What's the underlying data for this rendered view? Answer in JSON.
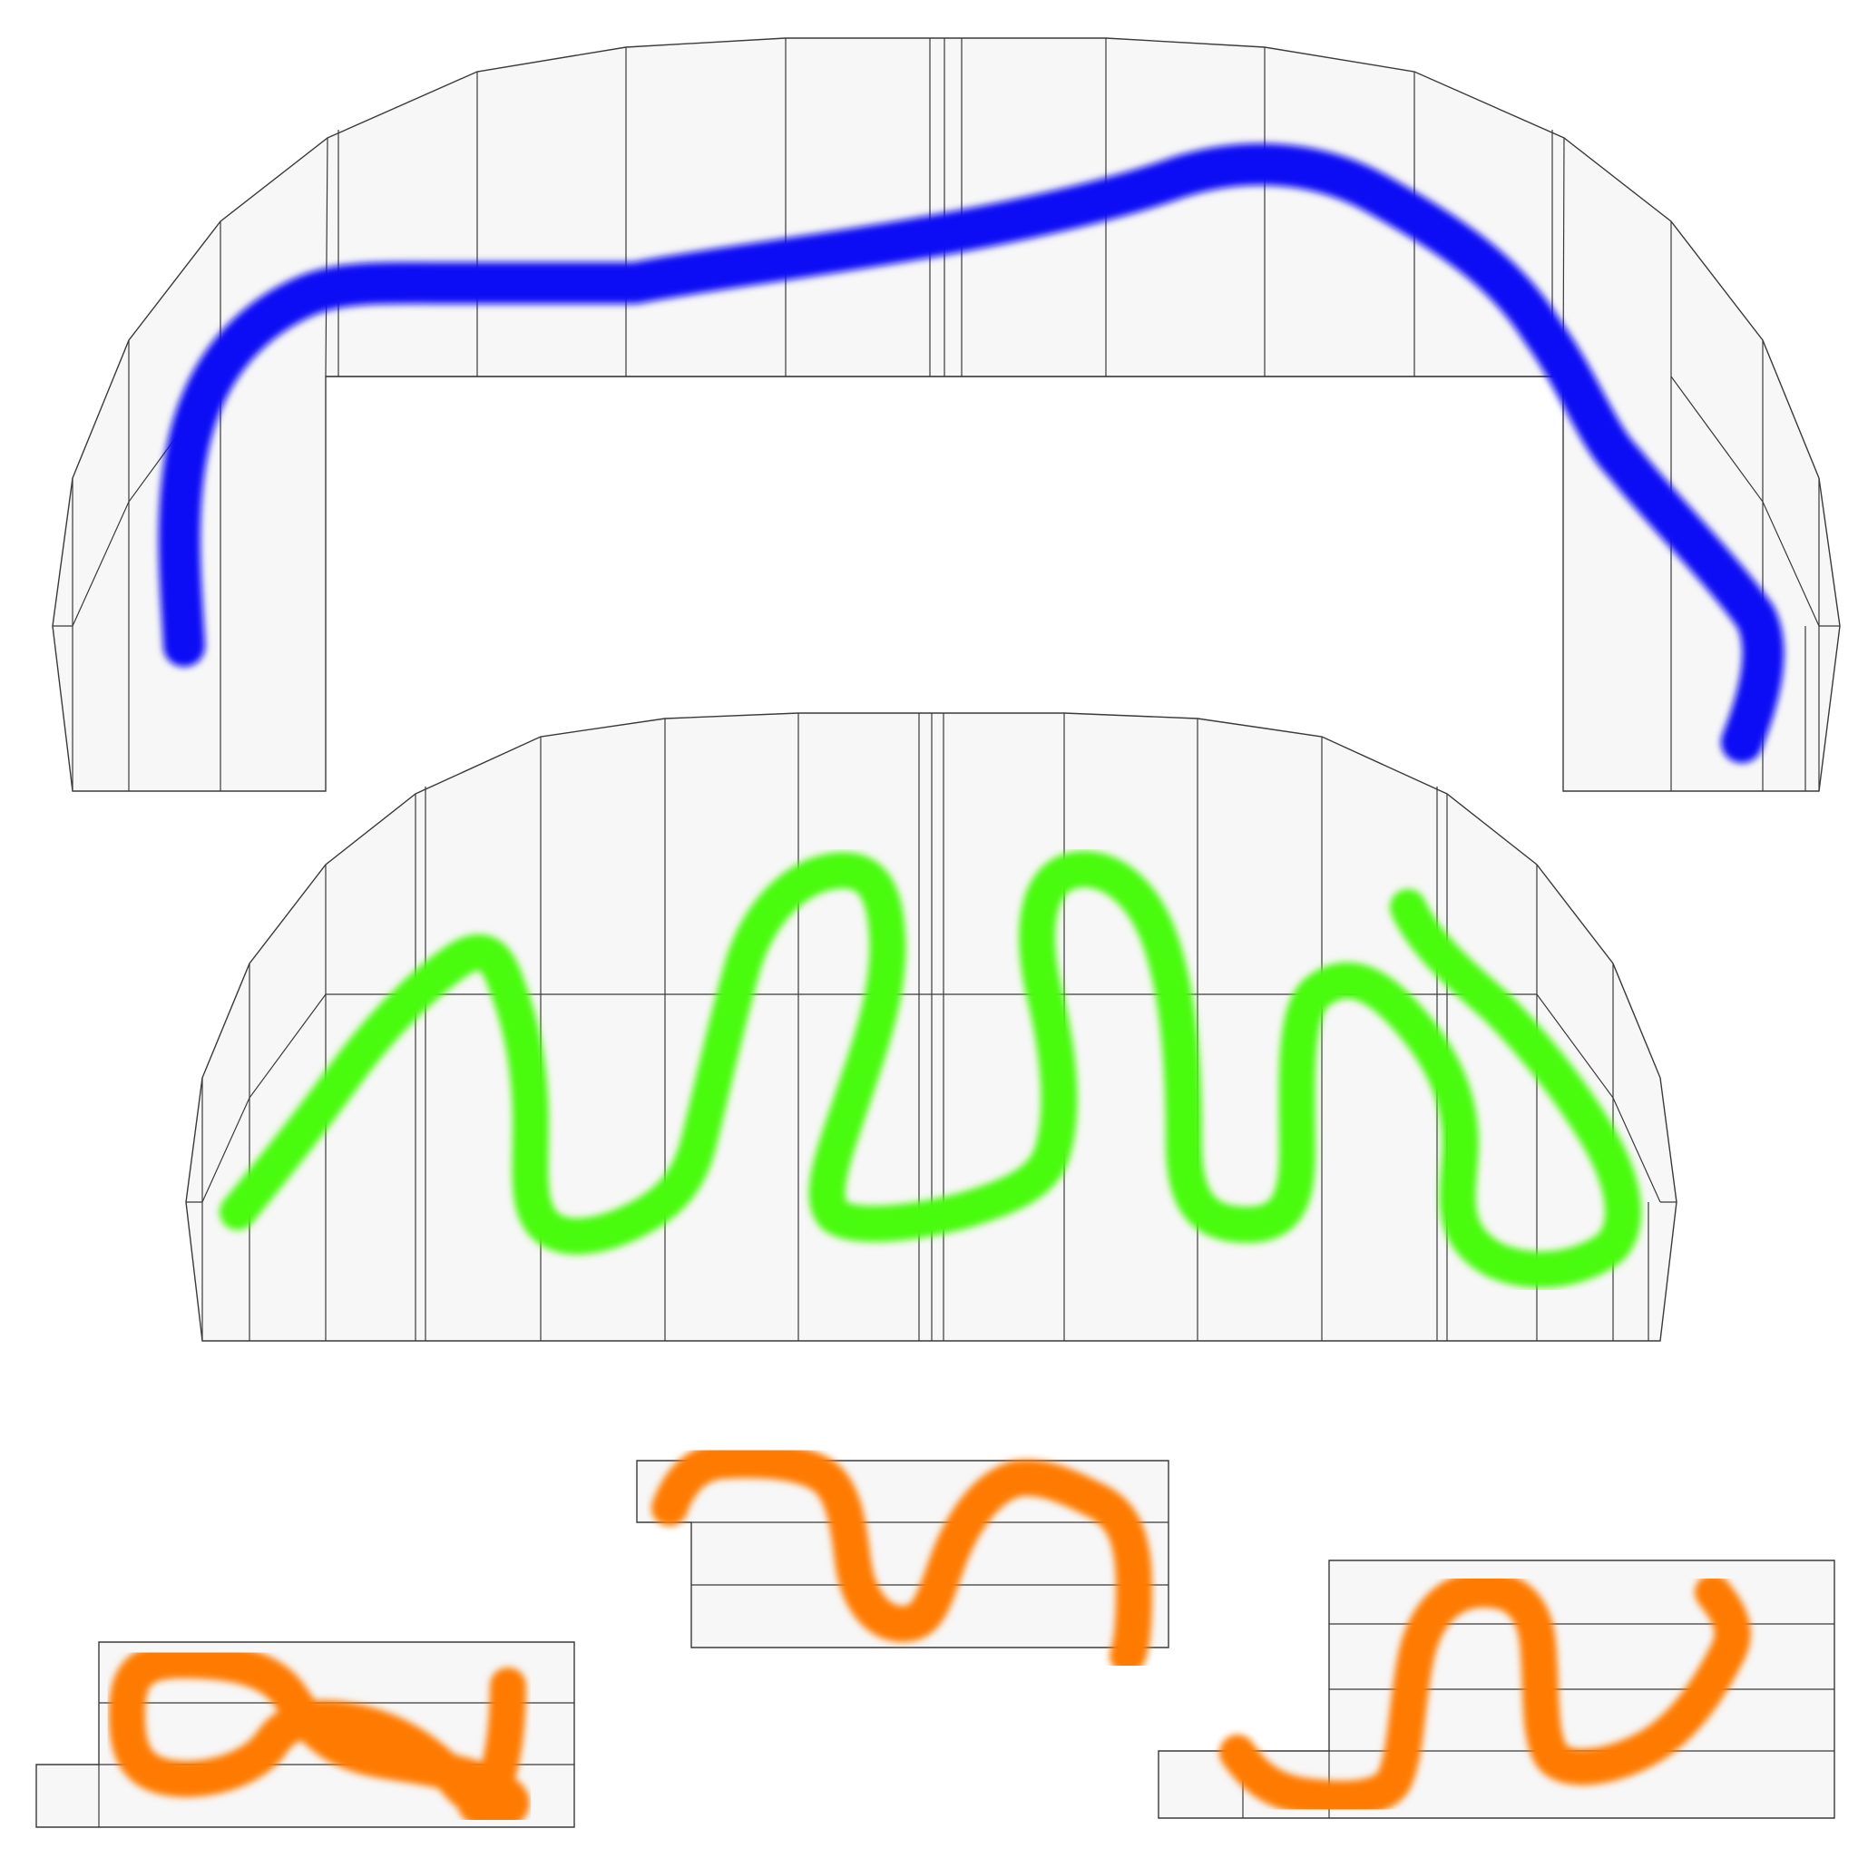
{
  "colors": {
    "background": "#ffffff",
    "panel_fill": "#f7f7f7",
    "panel_stroke": "#3a3a3a",
    "stroke_blue": "#0a0af5",
    "stroke_green": "#49fb08",
    "stroke_orange": "#ff7a06"
  },
  "strokes": [
    {
      "name": "blue-stroke",
      "color_key": "stroke_blue"
    },
    {
      "name": "green-stroke",
      "color_key": "stroke_green"
    },
    {
      "name": "orange-stroke-left",
      "color_key": "stroke_orange"
    },
    {
      "name": "orange-stroke-middle",
      "color_key": "stroke_orange"
    },
    {
      "name": "orange-stroke-right",
      "color_key": "stroke_orange"
    }
  ]
}
